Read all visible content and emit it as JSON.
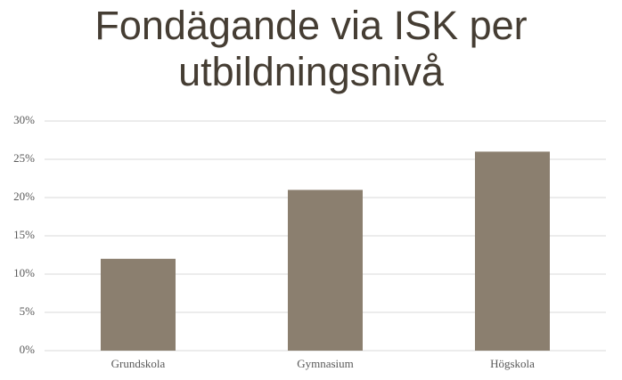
{
  "chart_data": {
    "type": "bar",
    "title": "Fondägande via ISK per utbildningsnivå",
    "categories": [
      "Grundskola",
      "Gymnasium",
      "Högskola"
    ],
    "values": [
      12,
      21,
      26
    ],
    "color": "#8b7f6f",
    "ylim": [
      0,
      30
    ],
    "yticks": [
      {
        "value": 0,
        "label": "0%"
      },
      {
        "value": 5,
        "label": "5%"
      },
      {
        "value": 10,
        "label": "10%"
      },
      {
        "value": 15,
        "label": "15%"
      },
      {
        "value": 20,
        "label": "20%"
      },
      {
        "value": 25,
        "label": "25%"
      },
      {
        "value": 30,
        "label": "30%"
      }
    ],
    "grid": true
  }
}
